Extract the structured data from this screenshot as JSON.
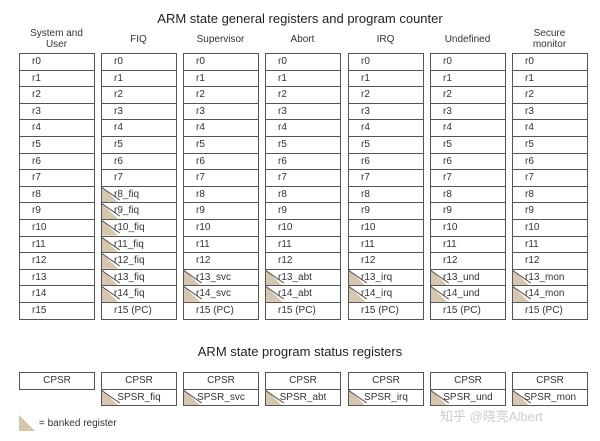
{
  "titles": {
    "general": "ARM state general registers and program counter",
    "status": "ARM state program status registers"
  },
  "columns": [
    {
      "name": "System and User",
      "head": "System and\nUser",
      "registers": [
        "r0",
        "r1",
        "r2",
        "r3",
        "r4",
        "r5",
        "r6",
        "r7",
        "r8",
        "r9",
        "r10",
        "r11",
        "r12",
        "r13",
        "r14",
        "r15"
      ],
      "banked": [],
      "psr": [
        "CPSR"
      ],
      "psr_banked": []
    },
    {
      "name": "FIQ",
      "head": "FIQ",
      "registers": [
        "r0",
        "r1",
        "r2",
        "r3",
        "r4",
        "r5",
        "r6",
        "r7",
        "r8_fiq",
        "r9_fiq",
        "r10_fiq",
        "r11_fiq",
        "r12_fiq",
        "r13_fiq",
        "r14_fiq",
        "r15 (PC)"
      ],
      "banked": [
        8,
        9,
        10,
        11,
        12,
        13,
        14
      ],
      "psr": [
        "CPSR",
        "SPSR_fiq"
      ],
      "psr_banked": [
        1
      ]
    },
    {
      "name": "Supervisor",
      "head": "Supervisor",
      "registers": [
        "r0",
        "r1",
        "r2",
        "r3",
        "r4",
        "r5",
        "r6",
        "r7",
        "r8",
        "r9",
        "r10",
        "r11",
        "r12",
        "r13_svc",
        "r14_svc",
        "r15 (PC)"
      ],
      "banked": [
        13,
        14
      ],
      "psr": [
        "CPSR",
        "SPSR_svc"
      ],
      "psr_banked": [
        1
      ]
    },
    {
      "name": "Abort",
      "head": "Abort",
      "registers": [
        "r0",
        "r1",
        "r2",
        "r3",
        "r4",
        "r5",
        "r6",
        "r7",
        "r8",
        "r9",
        "r10",
        "r11",
        "r12",
        "r13_abt",
        "r14_abt",
        "r15 (PC)"
      ],
      "banked": [
        13,
        14
      ],
      "psr": [
        "CPSR",
        "SPSR_abt"
      ],
      "psr_banked": [
        1
      ]
    },
    {
      "name": "IRQ",
      "head": "IRQ",
      "registers": [
        "r0",
        "r1",
        "r2",
        "r3",
        "r4",
        "r5",
        "r6",
        "r7",
        "r8",
        "r9",
        "r10",
        "r11",
        "r12",
        "r13_irq",
        "r14_irq",
        "r15 (PC)"
      ],
      "banked": [
        13,
        14
      ],
      "psr": [
        "CPSR",
        "SPSR_irq"
      ],
      "psr_banked": [
        1
      ]
    },
    {
      "name": "Undefined",
      "head": "Undefined",
      "registers": [
        "r0",
        "r1",
        "r2",
        "r3",
        "r4",
        "r5",
        "r6",
        "r7",
        "r8",
        "r9",
        "r10",
        "r11",
        "r12",
        "r13_und",
        "r14_und",
        "r15 (PC)"
      ],
      "banked": [
        13,
        14
      ],
      "psr": [
        "CPSR",
        "SPSR_und"
      ],
      "psr_banked": [
        1
      ]
    },
    {
      "name": "Secure monitor",
      "head": "Secure\nmonitor",
      "registers": [
        "r0",
        "r1",
        "r2",
        "r3",
        "r4",
        "r5",
        "r6",
        "r7",
        "r8",
        "r9",
        "r10",
        "r11",
        "r12",
        "r13_mon",
        "r14_mon",
        "r15 (PC)"
      ],
      "banked": [
        13,
        14
      ],
      "psr": [
        "CPSR",
        "SPSR_mon"
      ],
      "psr_banked": [
        1
      ]
    }
  ],
  "legend": {
    "label": "= banked register"
  },
  "watermark": "知乎 @晓亮Albert",
  "colors": {
    "banked_fill": "#d6c6ad",
    "border": "#555555"
  }
}
